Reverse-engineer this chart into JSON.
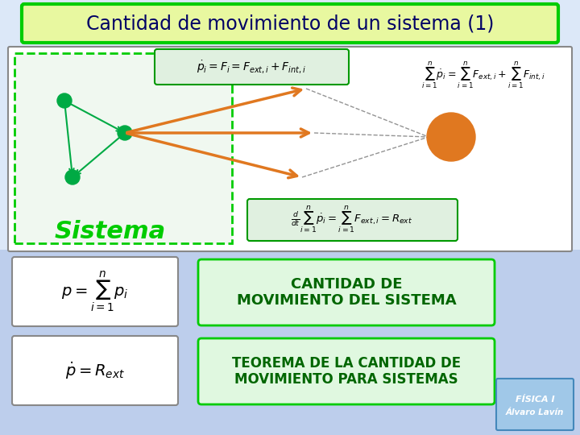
{
  "title": "Cantidad de movimiento de un sistema (1)",
  "title_bg": "#e8f8a0",
  "title_border": "#00cc00",
  "title_fontsize": 18,
  "bg_color": "#dce8f8",
  "upper_box_bg": "#f0f0f0",
  "upper_box_border": "#888888",
  "formula_box1_bg": "#e0f0e0",
  "formula_box1_border": "#009900",
  "formula_box2_bg": "#e0f0e0",
  "formula_box2_border": "#009900",
  "lower_left_bg": "#e8e8f8",
  "lower_left_border": "#888888",
  "lower_label_bg": "#e0f8e0",
  "lower_label_border": "#00cc00",
  "sistema_text_color": "#00cc00",
  "orange_color": "#e07820",
  "green_node_color": "#00aa44",
  "dashed_color": "#888888",
  "label1": "CANTIDAD DE\nMOVIMIENTO DEL SISTEMA",
  "label2": "TEOREMA DE LA CANTIDAD DE\nMOVIMIENTO PARA SISTEMAS",
  "formula_eq1": "$\\dot{p}_i = F_i = F_{ext,i} + F_{int,i}$",
  "formula_eq2": "$\\frac{d}{dt}\\sum_{i=1}^{n}\\dot{p}_i = \\sum_{i=1}^{n}F_{ext,i} = R_{ext}$",
  "formula_sum": "$\\sum_{i=1}^{n}\\dot{p}_i = \\sum_{i=1}^{n}F_{ext,i} + \\sum_{i=1}^{n}F_{int,i}$",
  "formula_p": "$p = \\sum_{i=1}^{n}p_i$",
  "formula_p2": "$\\dot{p} = R_{ext}$"
}
